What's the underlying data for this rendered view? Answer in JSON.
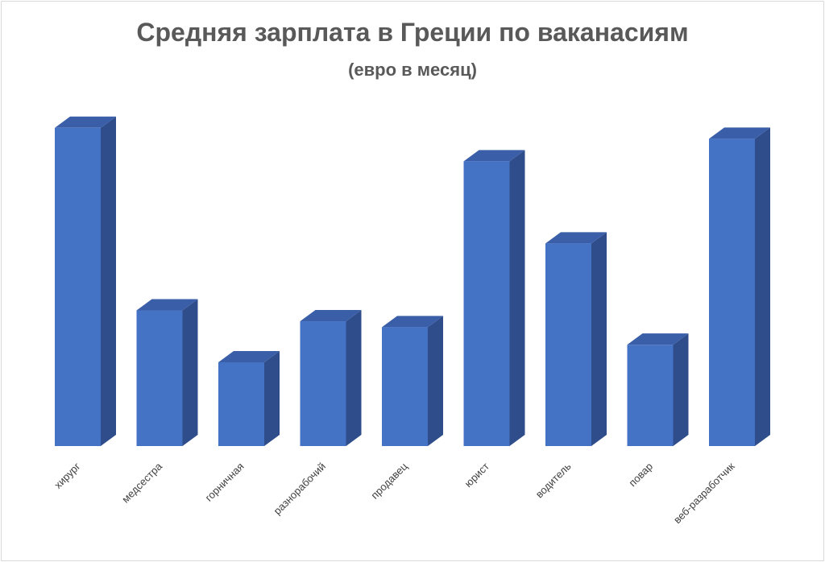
{
  "title": "Средняя зарплата в Греции по ваканасиям",
  "subtitle": "(евро в месяц)",
  "colors": {
    "bar_front": "#4472c4",
    "bar_side": "#2e4d8a",
    "bar_top": "#3a5fa8",
    "title": "#595959",
    "label": "#404040"
  },
  "chart_data": {
    "type": "bar",
    "categories": [
      "хирург",
      "медсестра",
      "горничная",
      "разнорабочий",
      "продавец",
      "юрист",
      "водитель",
      "повар",
      "веб-разработчик"
    ],
    "values": [
      3800,
      1620,
      1000,
      1490,
      1420,
      3400,
      2420,
      1210,
      3670
    ],
    "ylim": [
      0,
      4000
    ],
    "grid": false,
    "legend": "none",
    "three_d": true
  }
}
